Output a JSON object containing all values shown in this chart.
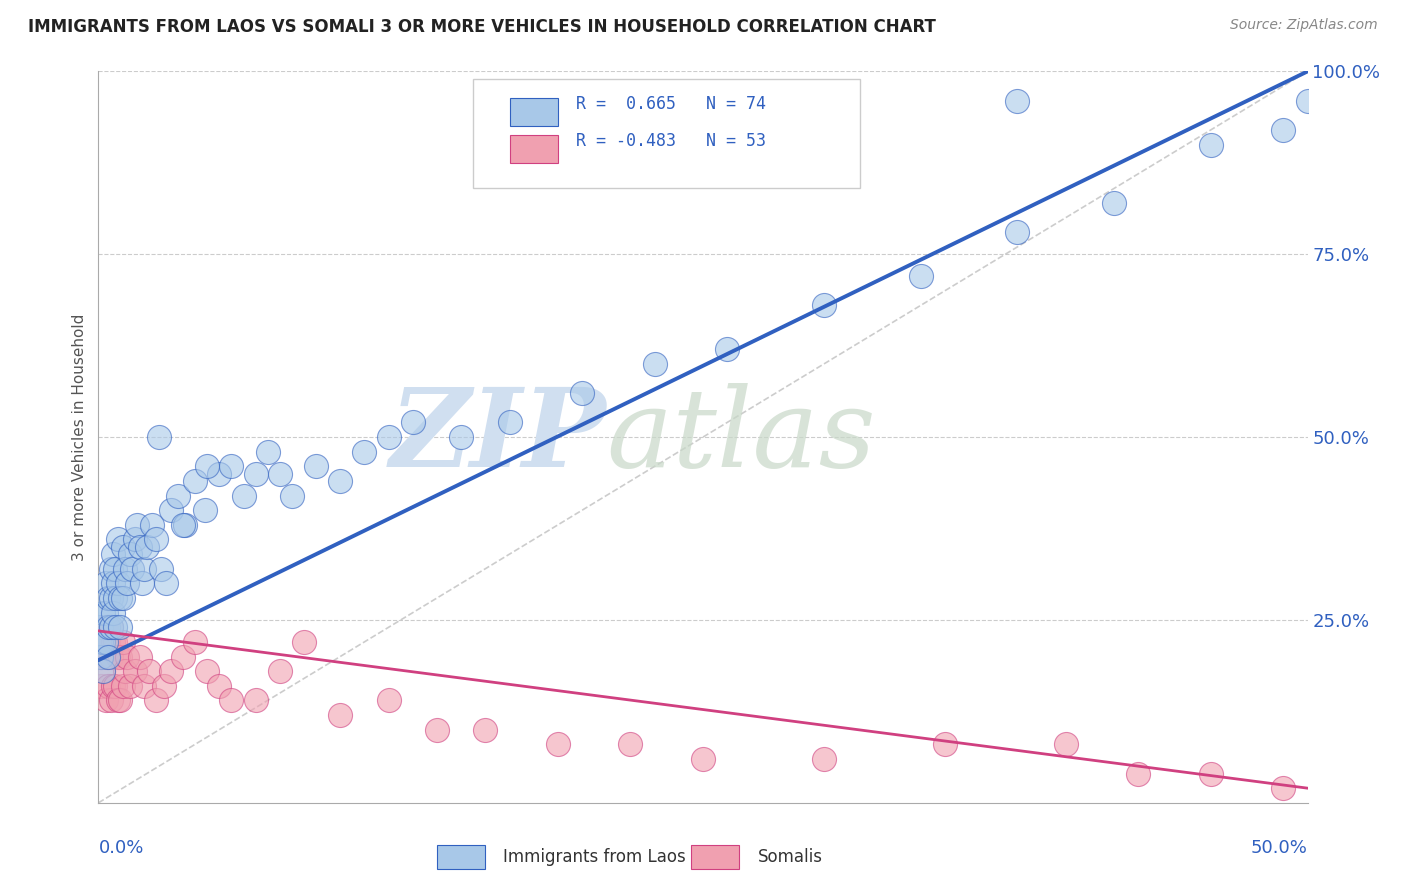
{
  "title": "IMMIGRANTS FROM LAOS VS SOMALI 3 OR MORE VEHICLES IN HOUSEHOLD CORRELATION CHART",
  "source_text": "Source: ZipAtlas.com",
  "ylabel_label": "3 or more Vehicles in Household",
  "x_min": 0.0,
  "x_max": 0.5,
  "y_min": 0.0,
  "y_max": 1.0,
  "laos_R": 0.665,
  "laos_N": 74,
  "somali_R": -0.483,
  "somali_N": 53,
  "laos_color": "#a8c8e8",
  "somali_color": "#f0a0b0",
  "laos_line_color": "#3060c0",
  "somali_line_color": "#d04080",
  "ref_line_color": "#c0c0c0",
  "watermark_zip": "ZIP",
  "watermark_atlas": "atlas",
  "watermark_color": "#d0dff0",
  "legend_label_laos": "Immigrants from Laos",
  "legend_label_somali": "Somalis",
  "background_color": "#ffffff",
  "laos_line_x0": 0.0,
  "laos_line_y0": 0.195,
  "laos_line_x1": 0.5,
  "laos_line_y1": 1.0,
  "somali_line_x0": 0.0,
  "somali_line_y0": 0.235,
  "somali_line_x1": 0.5,
  "somali_line_y1": 0.02,
  "laos_x": [
    0.001,
    0.001,
    0.001,
    0.002,
    0.002,
    0.002,
    0.003,
    0.003,
    0.003,
    0.004,
    0.004,
    0.004,
    0.005,
    0.005,
    0.005,
    0.006,
    0.006,
    0.006,
    0.007,
    0.007,
    0.007,
    0.008,
    0.008,
    0.009,
    0.009,
    0.01,
    0.01,
    0.011,
    0.012,
    0.013,
    0.014,
    0.015,
    0.016,
    0.017,
    0.018,
    0.019,
    0.02,
    0.022,
    0.024,
    0.026,
    0.028,
    0.03,
    0.033,
    0.036,
    0.04,
    0.044,
    0.05,
    0.055,
    0.06,
    0.065,
    0.07,
    0.075,
    0.08,
    0.09,
    0.1,
    0.11,
    0.12,
    0.13,
    0.15,
    0.17,
    0.2,
    0.23,
    0.26,
    0.3,
    0.34,
    0.38,
    0.42,
    0.46,
    0.49,
    0.5,
    0.025,
    0.035,
    0.045,
    0.38
  ],
  "laos_y": [
    0.24,
    0.22,
    0.2,
    0.26,
    0.22,
    0.18,
    0.3,
    0.26,
    0.22,
    0.28,
    0.24,
    0.2,
    0.32,
    0.28,
    0.24,
    0.34,
    0.3,
    0.26,
    0.32,
    0.28,
    0.24,
    0.36,
    0.3,
    0.28,
    0.24,
    0.35,
    0.28,
    0.32,
    0.3,
    0.34,
    0.32,
    0.36,
    0.38,
    0.35,
    0.3,
    0.32,
    0.35,
    0.38,
    0.36,
    0.32,
    0.3,
    0.4,
    0.42,
    0.38,
    0.44,
    0.4,
    0.45,
    0.46,
    0.42,
    0.45,
    0.48,
    0.45,
    0.42,
    0.46,
    0.44,
    0.48,
    0.5,
    0.52,
    0.5,
    0.52,
    0.56,
    0.6,
    0.62,
    0.68,
    0.72,
    0.78,
    0.82,
    0.9,
    0.92,
    0.96,
    0.5,
    0.38,
    0.46,
    0.96
  ],
  "somali_x": [
    0.001,
    0.001,
    0.002,
    0.002,
    0.003,
    0.003,
    0.003,
    0.004,
    0.004,
    0.005,
    0.005,
    0.005,
    0.006,
    0.006,
    0.007,
    0.007,
    0.008,
    0.008,
    0.009,
    0.009,
    0.01,
    0.01,
    0.011,
    0.012,
    0.013,
    0.015,
    0.017,
    0.019,
    0.021,
    0.024,
    0.027,
    0.03,
    0.035,
    0.04,
    0.045,
    0.05,
    0.055,
    0.065,
    0.075,
    0.085,
    0.1,
    0.12,
    0.14,
    0.16,
    0.19,
    0.22,
    0.25,
    0.3,
    0.35,
    0.4,
    0.43,
    0.46,
    0.49
  ],
  "somali_y": [
    0.2,
    0.16,
    0.22,
    0.18,
    0.24,
    0.2,
    0.14,
    0.22,
    0.16,
    0.24,
    0.2,
    0.14,
    0.22,
    0.16,
    0.22,
    0.16,
    0.2,
    0.14,
    0.2,
    0.14,
    0.22,
    0.16,
    0.18,
    0.2,
    0.16,
    0.18,
    0.2,
    0.16,
    0.18,
    0.14,
    0.16,
    0.18,
    0.2,
    0.22,
    0.18,
    0.16,
    0.14,
    0.14,
    0.18,
    0.22,
    0.12,
    0.14,
    0.1,
    0.1,
    0.08,
    0.08,
    0.06,
    0.06,
    0.08,
    0.08,
    0.04,
    0.04,
    0.02
  ]
}
